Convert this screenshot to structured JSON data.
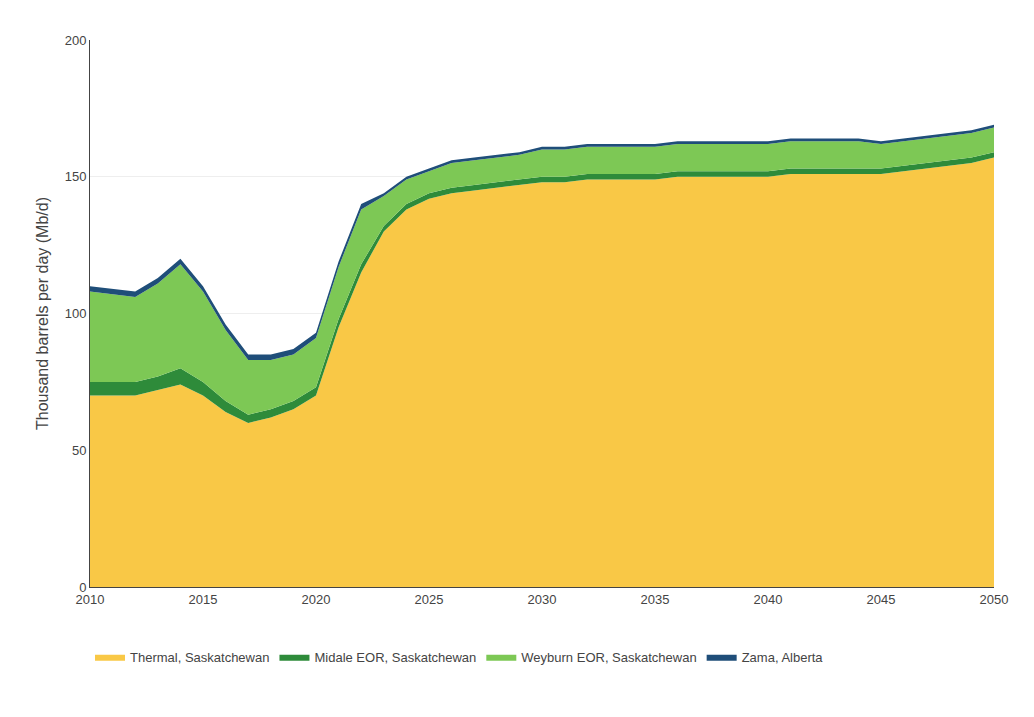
{
  "chart_data": {
    "type": "area",
    "stacked": true,
    "ylabel": "Thousand barrels per day (Mb/d)",
    "x": [
      2010,
      2011,
      2012,
      2013,
      2014,
      2015,
      2016,
      2017,
      2018,
      2019,
      2020,
      2021,
      2022,
      2023,
      2024,
      2025,
      2026,
      2027,
      2028,
      2029,
      2030,
      2031,
      2032,
      2033,
      2034,
      2035,
      2036,
      2037,
      2038,
      2039,
      2040,
      2041,
      2042,
      2043,
      2044,
      2045,
      2046,
      2047,
      2048,
      2049,
      2050
    ],
    "series": [
      {
        "name": "Thermal, Saskatchewan",
        "color": "#F9C846",
        "values": [
          70,
          70,
          70,
          72,
          74,
          70,
          64,
          60,
          62,
          65,
          70,
          95,
          115,
          130,
          138,
          142,
          144,
          145,
          146,
          147,
          148,
          148,
          149,
          149,
          149,
          149,
          150,
          150,
          150,
          150,
          150,
          151,
          151,
          151,
          151,
          151,
          152,
          153,
          154,
          155,
          157
        ]
      },
      {
        "name": "Midale EOR, Saskatchewan",
        "color": "#2E8B3A",
        "values": [
          5,
          5,
          5,
          5,
          6,
          5,
          4,
          3,
          3,
          3,
          3,
          3,
          3,
          2,
          2,
          2,
          2,
          2,
          2,
          2,
          2,
          2,
          2,
          2,
          2,
          2,
          2,
          2,
          2,
          2,
          2,
          2,
          2,
          2,
          2,
          2,
          2,
          2,
          2,
          2,
          2
        ]
      },
      {
        "name": "Weyburn EOR, Saskatchewan",
        "color": "#7DC855",
        "values": [
          33,
          32,
          31,
          34,
          38,
          33,
          26,
          20,
          18,
          17,
          18,
          19,
          20,
          11,
          9,
          8,
          9,
          9,
          9,
          9,
          10,
          10,
          10,
          10,
          10,
          10,
          10,
          10,
          10,
          10,
          10,
          10,
          10,
          10,
          10,
          9,
          9,
          9,
          9,
          9,
          9
        ]
      },
      {
        "name": "Zama, Alberta",
        "color": "#1F4E79",
        "values": [
          2,
          2,
          2,
          2,
          2,
          2,
          2,
          2,
          2,
          2,
          2,
          2,
          2,
          1,
          1,
          1,
          1,
          1,
          1,
          1,
          1,
          1,
          1,
          1,
          1,
          1,
          1,
          1,
          1,
          1,
          1,
          1,
          1,
          1,
          1,
          1,
          1,
          1,
          1,
          1,
          1
        ]
      }
    ],
    "xlim": [
      2010,
      2050
    ],
    "xticks": [
      2010,
      2015,
      2020,
      2025,
      2030,
      2035,
      2040,
      2045,
      2050
    ],
    "ylim": [
      0,
      200
    ],
    "yticks": [
      0,
      50,
      100,
      150,
      200
    ],
    "grid": true,
    "legend": "bottom"
  }
}
